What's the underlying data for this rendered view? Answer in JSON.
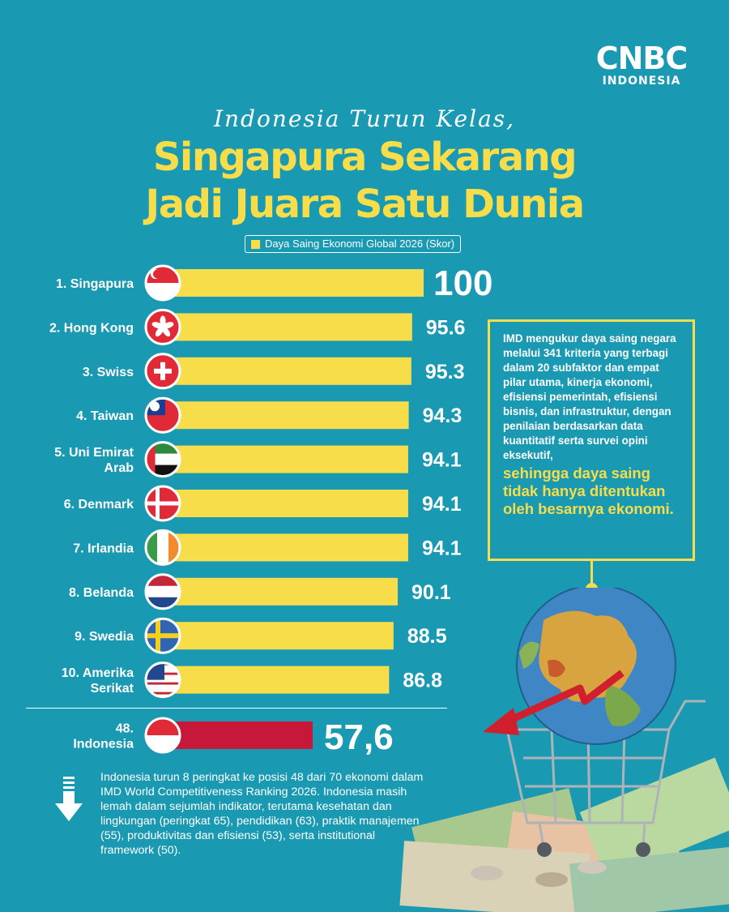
{
  "brand": {
    "logo_main": "CNBC",
    "logo_sub": "INDONESIA"
  },
  "header": {
    "kicker": "Indonesia Turun Kelas,",
    "headline_line1": "Singapura Sekarang",
    "headline_line2": "Jadi Juara Satu Dunia"
  },
  "colors": {
    "background": "#1a99b3",
    "bar": "#f7dd4a",
    "indonesia_bar": "#c8183a",
    "accent_text": "#f7dd4a"
  },
  "chart_data": {
    "type": "bar",
    "orientation": "horizontal",
    "legend": [
      "Daya Saing Ekonomi Global 2026 (Skor)"
    ],
    "categories": [
      "1. Singapura",
      "2. Hong Kong",
      "3. Swiss",
      "4. Taiwan",
      "5. Uni Emirat Arab",
      "6. Denmark",
      "7. Irlandia",
      "8. Belanda",
      "9. Swedia",
      "10. Amerika Serikat"
    ],
    "category_lines": [
      [
        "1. Singapura"
      ],
      [
        "2. Hong Kong"
      ],
      [
        "3. Swiss"
      ],
      [
        "4. Taiwan"
      ],
      [
        "5. Uni Emirat",
        "Arab"
      ],
      [
        "6. Denmark"
      ],
      [
        "7. Irlandia"
      ],
      [
        "8. Belanda"
      ],
      [
        "9. Swedia"
      ],
      [
        "10. Amerika",
        "Serikat"
      ]
    ],
    "values": [
      100,
      95.6,
      95.3,
      94.3,
      94.1,
      94.1,
      94.1,
      90.1,
      88.5,
      86.8
    ],
    "value_labels": [
      "100",
      "95.6",
      "95.3",
      "94.3",
      "94.1",
      "94.1",
      "94.1",
      "90.1",
      "88.5",
      "86.8"
    ],
    "flags": [
      "singapore-flag",
      "hong-kong-flag",
      "switzerland-flag",
      "taiwan-flag",
      "uae-flag",
      "denmark-flag",
      "ireland-flag",
      "netherlands-flag",
      "sweden-flag",
      "usa-flag"
    ],
    "highlight": {
      "category_lines": [
        "48.",
        "Indonesia"
      ],
      "value": 57.6,
      "value_label": "57,6",
      "flag": "indonesia-flag"
    }
  },
  "info_box": {
    "text": "IMD mengukur daya saing negara melalui 341 kriteria yang terbagi dalam 20 subfaktor dan empat pilar utama, kinerja ekonomi, efisiensi pemerintah, efisiensi bisnis, dan infrastruktur, dengan penilaian berdasarkan data kuantitatif serta survei opini eksekutif,",
    "highlight": "sehingga daya saing tidak hanya ditentukan oleh besarnya ekonomi."
  },
  "bottom_note": "Indonesia turun 8 peringkat ke posisi 48 dari 70 ekonomi dalam IMD World Competitiveness Ranking 2026. Indonesia masih lemah dalam sejumlah indikator, terutama kesehatan dan lingkungan (peringkat 65), pendidikan (63), praktik manajemen (55), produktivitas dan efisiensi (53), serta institutional framework (50).",
  "illustration": {
    "name": "globe-in-shopping-cart-with-money"
  }
}
